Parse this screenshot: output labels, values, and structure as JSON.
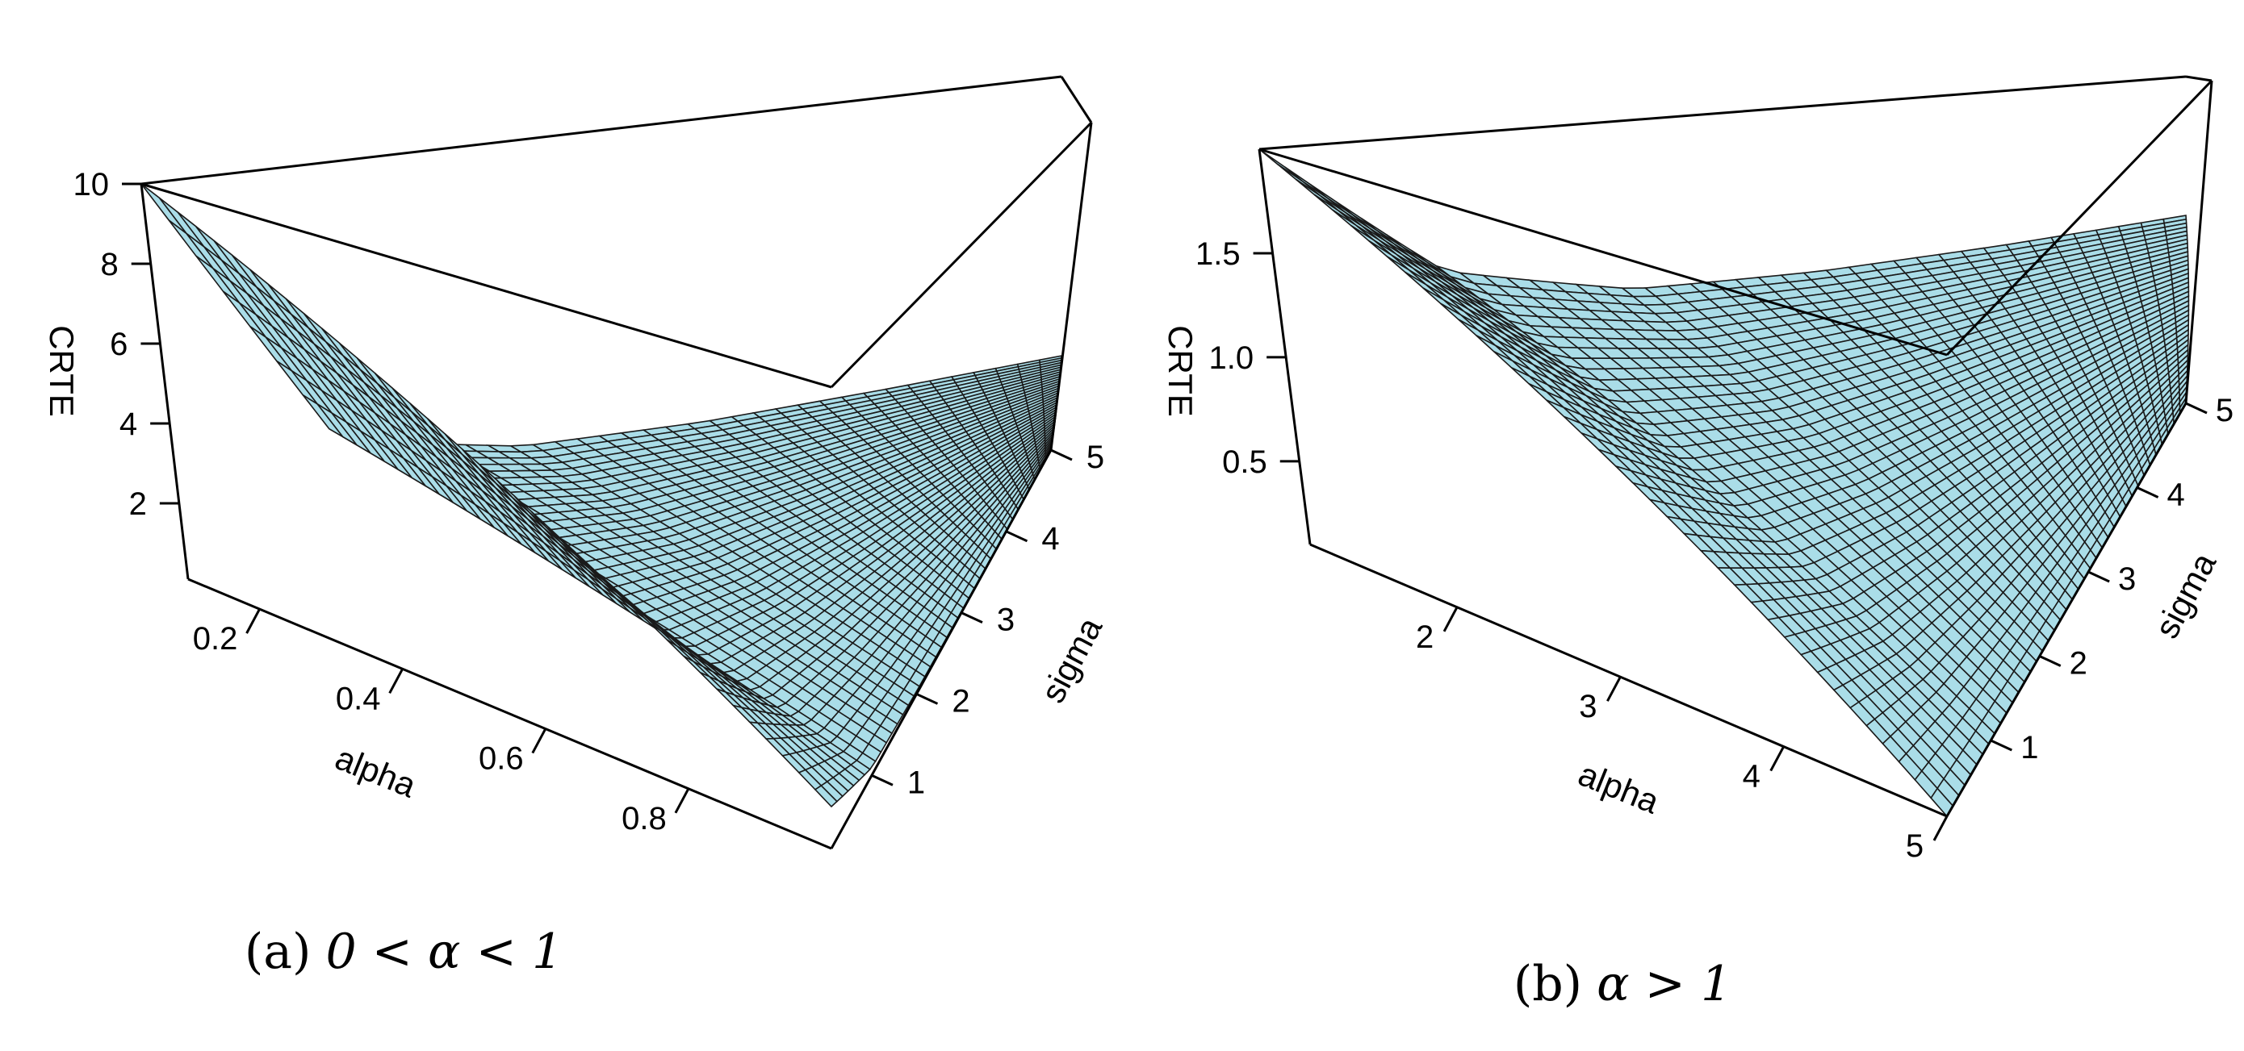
{
  "chart_data": [
    {
      "type": "surface3d",
      "caption_prefix": "(a)",
      "caption_math": "0 < α < 1",
      "surface_color": "#aadde8",
      "grid_color": "#1a1a1a",
      "box_color": "#000000",
      "x_axis": {
        "label": "alpha",
        "range": [
          0.1,
          1.0
        ],
        "ticks": [
          0.2,
          0.4,
          0.6,
          0.8
        ],
        "tick_labels": [
          "0.2",
          "0.4",
          "0.6",
          "0.8"
        ]
      },
      "y_axis": {
        "label": "sigma",
        "range": [
          0.1,
          5.0
        ],
        "ticks": [
          1,
          2,
          3,
          4,
          5
        ],
        "tick_labels": [
          "1",
          "2",
          "3",
          "4",
          "5"
        ]
      },
      "z_axis": {
        "label": "CRTE",
        "range": [
          0.1,
          10.0
        ],
        "ticks": [
          2,
          4,
          6,
          8,
          10
        ],
        "tick_labels": [
          "2",
          "4",
          "6",
          "8",
          "10"
        ]
      },
      "surface_samples": {
        "alpha": [
          0.1,
          1.0
        ],
        "sigma": [
          0.1,
          1,
          2,
          3,
          4,
          5
        ],
        "crte_at_alpha_min": [
          10.0,
          2.8,
          1.7,
          1.35,
          1.2,
          1.1
        ],
        "crte_at_alpha_max": [
          1.0,
          0.28,
          0.17,
          0.14,
          0.12,
          0.11
        ]
      },
      "grid_lines": 40
    },
    {
      "type": "surface3d",
      "caption_prefix": "(b)",
      "caption_math": "α > 1",
      "surface_color": "#aadde8",
      "grid_color": "#1a1a1a",
      "box_color": "#000000",
      "x_axis": {
        "label": "alpha",
        "range": [
          1.1,
          5.0
        ],
        "ticks": [
          2,
          3,
          4,
          5
        ],
        "tick_labels": [
          "2",
          "3",
          "4",
          "5"
        ]
      },
      "y_axis": {
        "label": "sigma",
        "range": [
          0.1,
          5.0
        ],
        "ticks": [
          1,
          2,
          3,
          4,
          5
        ],
        "tick_labels": [
          "1",
          "2",
          "3",
          "4",
          "5"
        ]
      },
      "z_axis": {
        "label": "CRTE",
        "range": [
          0.1,
          2.0
        ],
        "ticks": [
          0.5,
          1.0,
          1.5
        ],
        "tick_labels": [
          "0.5",
          "1.0",
          "1.5"
        ]
      },
      "surface_samples": {
        "alpha": [
          1.1,
          5.0
        ],
        "sigma": [
          0.1,
          1,
          2,
          3,
          4,
          5
        ],
        "crte_at_alpha_min": [
          2.0,
          1.3,
          1.05,
          0.97,
          0.93,
          0.91
        ],
        "crte_at_alpha_max": [
          0.1,
          0.1,
          0.1,
          0.1,
          0.1,
          0.1
        ]
      },
      "grid_lines": 40
    }
  ]
}
